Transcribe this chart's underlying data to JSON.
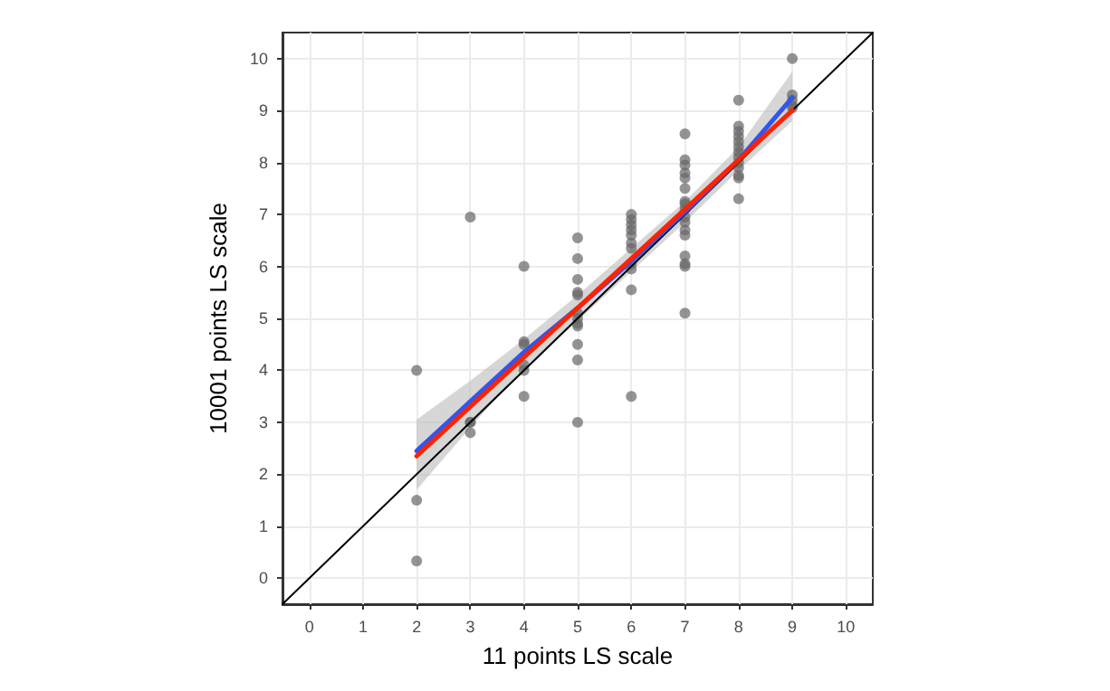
{
  "chart_data": {
    "type": "scatter",
    "xlabel": "11 points LS scale",
    "ylabel": "10001 points LS scale",
    "xlim": [
      -0.5,
      10.5
    ],
    "ylim": [
      -0.5,
      10.5
    ],
    "xticks": [
      0,
      1,
      2,
      3,
      4,
      5,
      6,
      7,
      8,
      9,
      10
    ],
    "yticks": [
      0,
      1,
      2,
      3,
      4,
      5,
      6,
      7,
      8,
      9,
      10
    ],
    "grid": true,
    "marker": "circle",
    "series": [
      {
        "color": "#666666",
        "x": [
          2,
          2,
          2,
          3,
          3,
          3,
          3,
          4,
          4,
          4,
          4,
          4,
          4,
          5,
          5,
          5,
          5,
          5,
          5,
          5,
          5,
          5,
          5,
          5,
          5,
          6,
          6,
          6,
          6,
          6,
          6,
          6,
          6,
          6,
          6,
          6,
          7,
          7,
          7,
          7,
          7,
          7,
          7,
          7,
          7,
          7,
          7,
          7,
          7,
          7,
          7,
          7,
          7,
          8,
          8,
          8,
          8,
          8,
          8,
          8,
          8,
          8,
          8,
          8,
          8,
          8,
          9,
          9,
          9,
          9,
          9
        ],
        "values": [
          4,
          1.5,
          0.33,
          6.95,
          3.0,
          2.8,
          3.0,
          6.0,
          4.55,
          4.5,
          4.1,
          4.0,
          3.5,
          6.55,
          6.15,
          5.75,
          5.5,
          5.45,
          5.1,
          5.0,
          4.9,
          4.85,
          4.5,
          4.2,
          3.0,
          7.0,
          6.9,
          6.8,
          6.7,
          6.6,
          6.45,
          6.35,
          6.05,
          5.95,
          5.55,
          3.5,
          8.55,
          8.05,
          7.95,
          7.8,
          7.7,
          7.5,
          7.25,
          7.2,
          7.1,
          6.95,
          6.85,
          6.7,
          6.6,
          6.2,
          6.05,
          6.0,
          5.1,
          9.2,
          8.7,
          8.6,
          8.5,
          8.4,
          8.3,
          8.2,
          8.1,
          8.0,
          7.9,
          7.75,
          7.7,
          7.3,
          10.0,
          9.3,
          9.2,
          9.1,
          9.05
        ]
      },
      {
        "type": "line",
        "color": "#000000",
        "marker": "none",
        "x": [
          -0.5,
          10.5
        ],
        "values": [
          -0.5,
          10.5
        ]
      },
      {
        "type": "line",
        "color": "#3355ee",
        "marker": "none",
        "x": [
          2,
          3,
          4,
          5,
          6,
          7,
          8,
          9
        ],
        "values": [
          2.45,
          3.4,
          4.35,
          5.2,
          6.1,
          7.05,
          8.05,
          9.25
        ],
        "lower": [
          1.7,
          2.9,
          4.05,
          4.95,
          5.9,
          6.85,
          7.85,
          8.8
        ],
        "upper": [
          3.05,
          3.8,
          4.6,
          5.45,
          6.35,
          7.25,
          8.3,
          9.75
        ]
      },
      {
        "type": "line",
        "color": "#ff2200",
        "marker": "none",
        "x": [
          2,
          9
        ],
        "values": [
          2.35,
          9.0
        ]
      }
    ]
  }
}
